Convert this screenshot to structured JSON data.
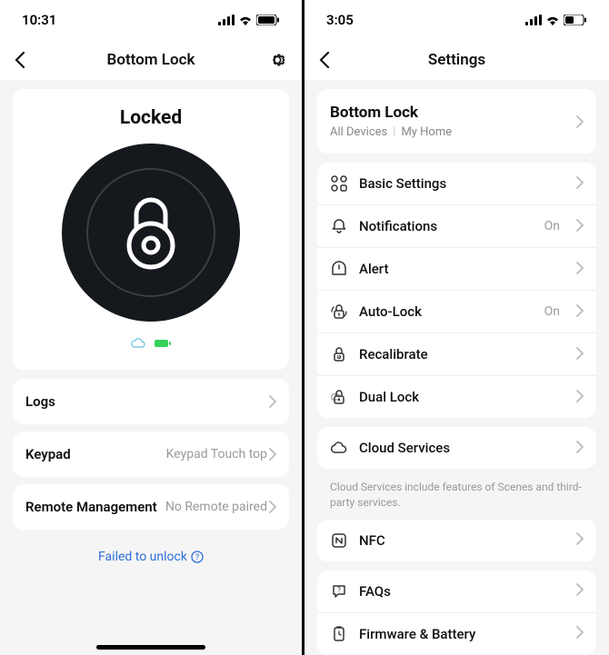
{
  "left": {
    "status_time": "10:31",
    "nav_title": "Bottom Lock",
    "lock_state": "Locked",
    "rows": [
      {
        "label": "Logs",
        "value": ""
      },
      {
        "label": "Keypad",
        "value": "Keypad Touch top"
      },
      {
        "label": "Remote Management",
        "value": "No Remote paired"
      }
    ],
    "fail_text": "Failed to unlock",
    "cloud_color": "#7ec8e8",
    "battery_color": "#34d058"
  },
  "right": {
    "status_time": "3:05",
    "nav_title": "Settings",
    "device_name": "Bottom Lock",
    "device_sub1": "All Devices",
    "device_sub2": "My Home",
    "group1": [
      {
        "icon": "grid",
        "label": "Basic Settings",
        "value": ""
      },
      {
        "icon": "bell",
        "label": "Notifications",
        "value": "On"
      },
      {
        "icon": "alert",
        "label": "Alert",
        "value": ""
      },
      {
        "icon": "autolock",
        "label": "Auto-Lock",
        "value": "On"
      },
      {
        "icon": "recal",
        "label": "Recalibrate",
        "value": ""
      },
      {
        "icon": "dual",
        "label": "Dual Lock",
        "value": ""
      }
    ],
    "group2": [
      {
        "icon": "cloud",
        "label": "Cloud Services",
        "value": ""
      }
    ],
    "helper": "Cloud Services include features of Scenes and third-party services.",
    "group3": [
      {
        "icon": "nfc",
        "label": "NFC",
        "value": ""
      }
    ],
    "group4": [
      {
        "icon": "faq",
        "label": "FAQs",
        "value": ""
      },
      {
        "icon": "fw",
        "label": "Firmware & Battery",
        "value": ""
      }
    ]
  }
}
